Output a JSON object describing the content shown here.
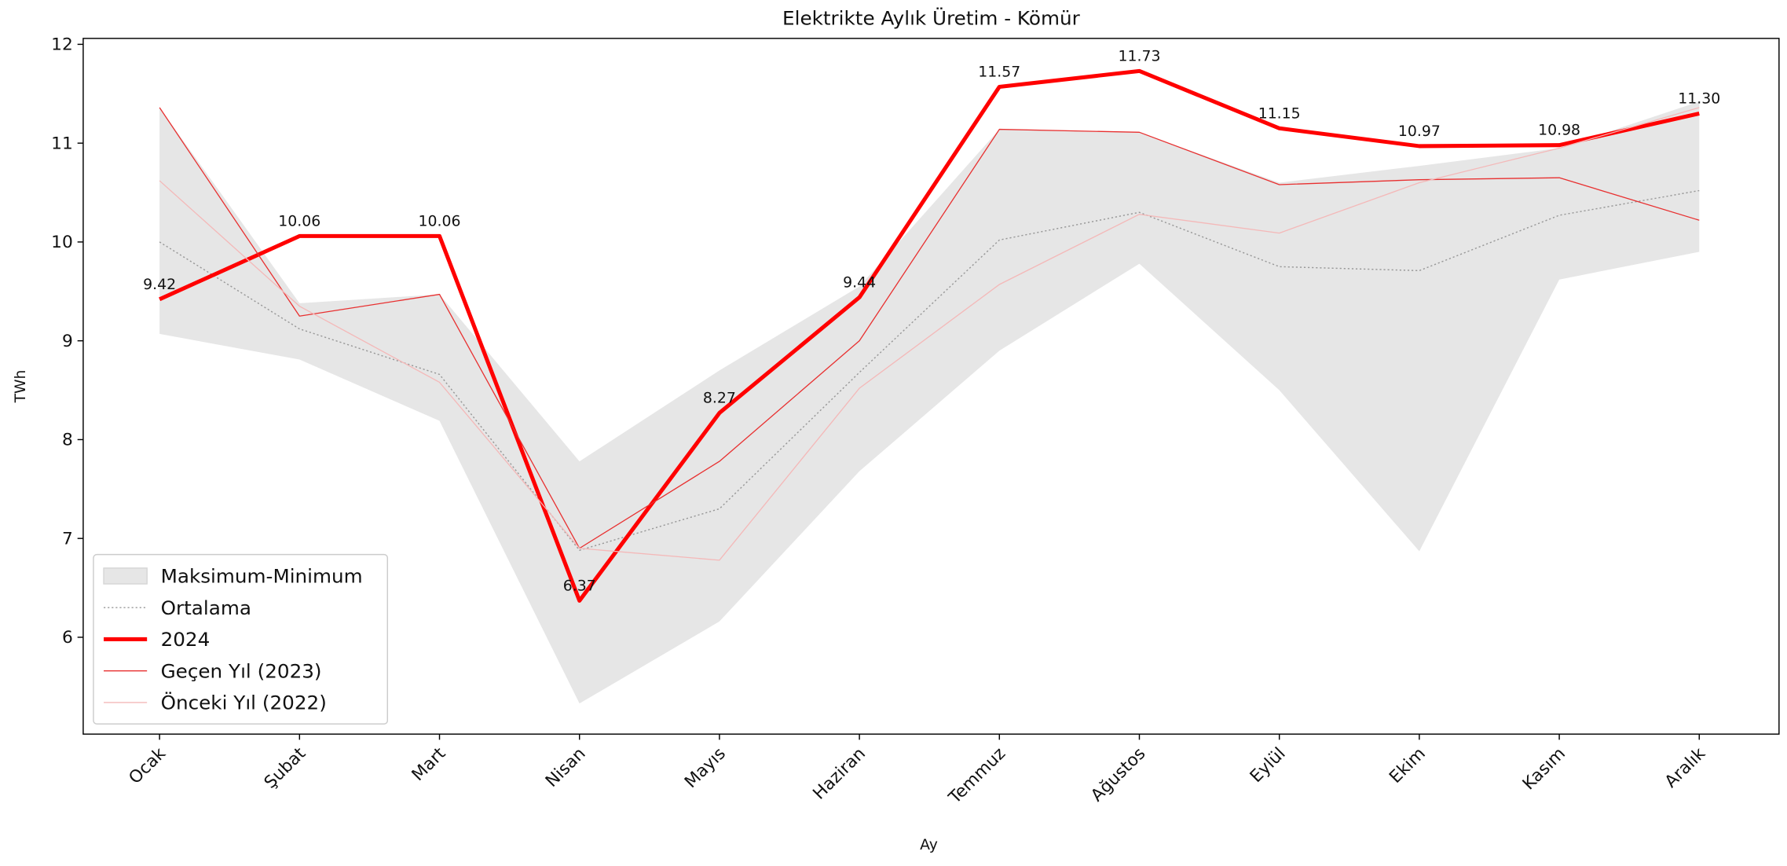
{
  "chart_data": {
    "type": "line",
    "title": "Elektrikte Aylık Üretim - Kömür",
    "x_label": "Ay",
    "y_label": "TWh",
    "categories": [
      "Ocak",
      "Şubat",
      "Mart",
      "Nisan",
      "Mayıs",
      "Haziran",
      "Temmuz",
      "Ağustos",
      "Eylül",
      "Ekim",
      "Kasım",
      "Aralık"
    ],
    "band": {
      "name": "Maksimum-Minimum",
      "color": "#e6e6e6",
      "upper": [
        11.36,
        9.38,
        9.47,
        7.78,
        8.7,
        9.55,
        11.14,
        11.11,
        10.6,
        10.77,
        10.95,
        11.42
      ],
      "lower": [
        9.07,
        8.81,
        8.19,
        5.33,
        6.16,
        7.68,
        8.9,
        9.78,
        8.5,
        6.87,
        9.62,
        9.9
      ]
    },
    "series": [
      {
        "name": "Ortalama",
        "color": "#999999",
        "width": 1,
        "dash": true,
        "values": [
          10.0,
          9.12,
          8.66,
          6.88,
          7.3,
          8.68,
          10.02,
          10.3,
          9.75,
          9.71,
          10.27,
          10.52
        ]
      },
      {
        "name": "2024",
        "color": "#ff0000",
        "width": 3.5,
        "values": [
          9.42,
          10.06,
          10.06,
          6.37,
          8.27,
          9.44,
          11.57,
          11.73,
          11.15,
          10.97,
          10.98,
          11.3
        ],
        "value_labels": [
          "9.42",
          "10.06",
          "10.06",
          "6.37",
          "8.27",
          "9.44",
          "11.57",
          "11.73",
          "11.15",
          "10.97",
          "10.98",
          "11.30"
        ]
      },
      {
        "name": "Geçen Yıl (2023)",
        "color": "#e83030",
        "width": 0.9,
        "values": [
          11.36,
          9.25,
          9.47,
          6.9,
          7.78,
          9.0,
          11.14,
          11.11,
          10.58,
          10.63,
          10.65,
          10.22
        ]
      },
      {
        "name": "Önceki Yıl (2022)",
        "color": "#f4b8b8",
        "width": 0.9,
        "values": [
          10.62,
          9.35,
          8.58,
          6.9,
          6.78,
          8.52,
          9.57,
          10.28,
          10.09,
          10.6,
          10.95,
          11.36
        ]
      }
    ],
    "ylim": [
      5.02,
      12.06
    ],
    "yticks": [
      6,
      7,
      8,
      9,
      10,
      11,
      12
    ],
    "legend": "lower left"
  }
}
